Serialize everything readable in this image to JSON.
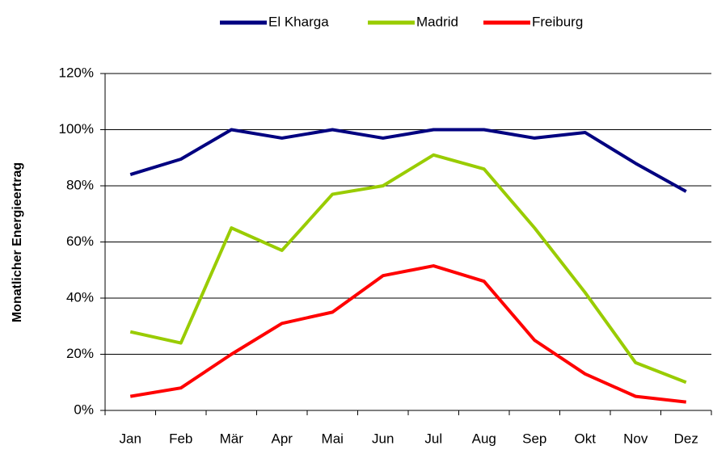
{
  "chart_data": {
    "type": "line",
    "y_label": "Monatlicher Energieertrag",
    "categories": [
      "Jan",
      "Feb",
      "Mär",
      "Apr",
      "Mai",
      "Jun",
      "Jul",
      "Aug",
      "Sep",
      "Okt",
      "Nov",
      "Dez"
    ],
    "series": [
      {
        "name": "El Kharga",
        "color": "#000080",
        "values": [
          84,
          89.5,
          100,
          97,
          100,
          97,
          100,
          100,
          97,
          99,
          88,
          78
        ]
      },
      {
        "name": "Madrid",
        "color": "#99cc00",
        "values": [
          28,
          24,
          65,
          57,
          77,
          80,
          91,
          86,
          65,
          42,
          17,
          10
        ]
      },
      {
        "name": "Freiburg",
        "color": "#ff0000",
        "values": [
          5,
          8,
          20,
          31,
          35,
          48,
          51.5,
          46,
          25,
          13,
          5,
          3
        ]
      }
    ],
    "ylim": [
      0,
      120
    ],
    "yticks": [
      {
        "value": 0,
        "label": "0%"
      },
      {
        "value": 20,
        "label": "20%"
      },
      {
        "value": 40,
        "label": "40%"
      },
      {
        "value": 60,
        "label": "60%"
      },
      {
        "value": 80,
        "label": "80%"
      },
      {
        "value": 100,
        "label": "100%"
      },
      {
        "value": 120,
        "label": "120%"
      }
    ],
    "grid": true,
    "legend": "top"
  }
}
